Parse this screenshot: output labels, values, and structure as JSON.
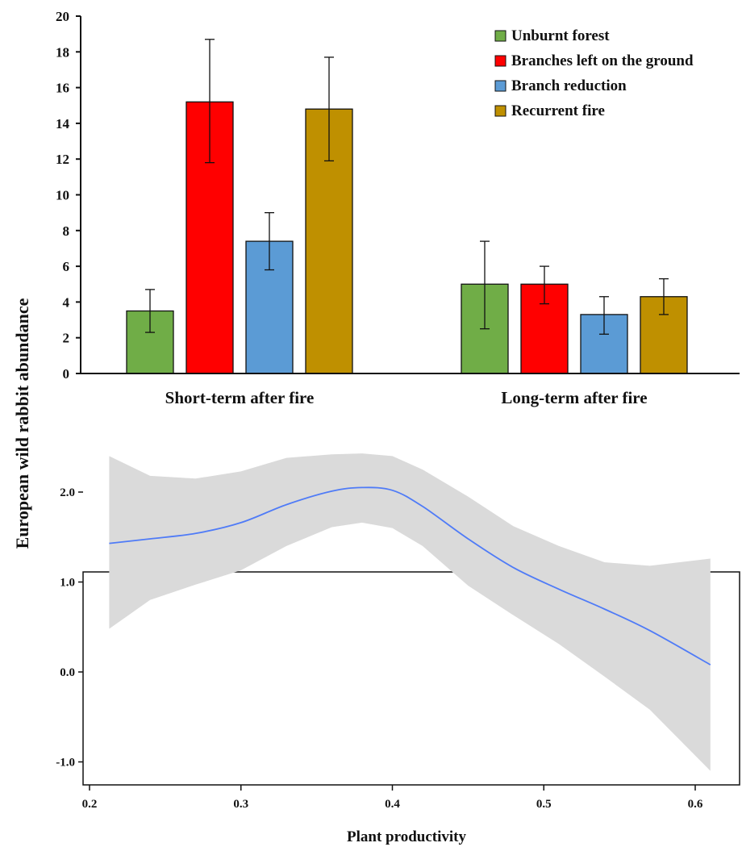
{
  "shared_ylabel": "European wild rabbit abundance",
  "chart_data": [
    {
      "type": "bar",
      "categories": [
        "Short-term after fire",
        "Long-term after fire"
      ],
      "series": [
        {
          "name": "Unburnt forest",
          "color": "#70AD47",
          "values": [
            3.5,
            5.0
          ],
          "err_low": [
            2.3,
            2.5
          ],
          "err_high": [
            4.7,
            7.4
          ]
        },
        {
          "name": "Branches left on the ground",
          "color": "#FF0000",
          "values": [
            15.2,
            5.0
          ],
          "err_low": [
            11.8,
            3.9
          ],
          "err_high": [
            18.7,
            6.0
          ]
        },
        {
          "name": "Branch reduction",
          "color": "#5B9BD5",
          "values": [
            7.4,
            3.3
          ],
          "err_low": [
            5.8,
            2.2
          ],
          "err_high": [
            9.0,
            4.3
          ]
        },
        {
          "name": "Recurrent fire",
          "color": "#BF9000",
          "values": [
            14.8,
            4.3
          ],
          "err_low": [
            11.9,
            3.3
          ],
          "err_high": [
            17.7,
            5.3
          ]
        }
      ],
      "ylim": [
        0,
        20
      ],
      "yticks": [
        "0",
        "2",
        "4",
        "6",
        "8",
        "10",
        "12",
        "14",
        "16",
        "18",
        "20"
      ],
      "legend_position": "top-right"
    },
    {
      "type": "line",
      "xlabel": "Plant productivity",
      "xlim": [
        0.2,
        0.62
      ],
      "ylim": [
        -1.15,
        2.5
      ],
      "xticks": [
        "0.2",
        "0.3",
        "0.4",
        "0.5",
        "0.6"
      ],
      "yticks": [
        "-1.0",
        "0.0",
        "1.0",
        "2.0"
      ],
      "line_color": "#4F7BF7",
      "band_color": "#DADADA",
      "series": [
        {
          "x": [
            0.213,
            0.24,
            0.27,
            0.3,
            0.33,
            0.36,
            0.38,
            0.4,
            0.42,
            0.45,
            0.48,
            0.51,
            0.54,
            0.57,
            0.61
          ],
          "y": [
            1.43,
            1.48,
            1.54,
            1.66,
            1.86,
            2.01,
            2.05,
            2.02,
            1.84,
            1.48,
            1.16,
            0.92,
            0.7,
            0.46,
            0.08
          ],
          "lower": [
            0.48,
            0.8,
            0.97,
            1.13,
            1.4,
            1.61,
            1.66,
            1.6,
            1.4,
            0.96,
            0.63,
            0.31,
            -0.05,
            -0.42,
            -1.1
          ],
          "upper": [
            2.4,
            2.18,
            2.15,
            2.23,
            2.38,
            2.42,
            2.43,
            2.4,
            2.25,
            1.95,
            1.62,
            1.4,
            1.22,
            1.18,
            1.26
          ]
        }
      ]
    }
  ]
}
